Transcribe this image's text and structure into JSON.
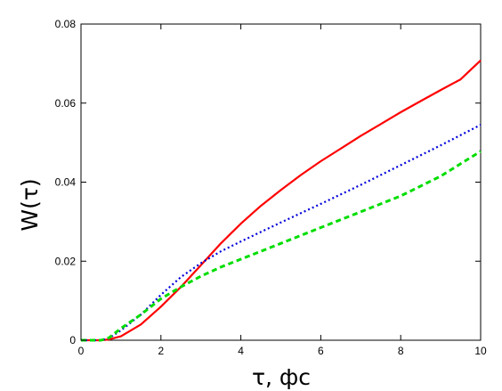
{
  "chart_data": {
    "type": "line",
    "title": "",
    "xlabel": "τ, фс",
    "ylabel": "W(τ)",
    "xlim": [
      0,
      10
    ],
    "ylim": [
      0,
      0.08
    ],
    "x_ticks": [
      0,
      2,
      4,
      6,
      8,
      10
    ],
    "y_ticks": [
      0,
      0.02,
      0.04,
      0.06,
      0.08
    ],
    "x_tick_labels": [
      "0",
      "2",
      "4",
      "6",
      "8",
      "10"
    ],
    "y_tick_labels": [
      "0",
      "0.02",
      "0.04",
      "0.06",
      "0.08"
    ],
    "grid": false,
    "legend": "none",
    "series": [
      {
        "color": "#ff0000",
        "style": "solid",
        "x": [
          0,
          0.5,
          0.7,
          1.0,
          1.5,
          2.0,
          2.5,
          3.0,
          3.5,
          4.0,
          4.5,
          5.0,
          5.5,
          6.0,
          6.5,
          7.0,
          7.5,
          8.0,
          8.5,
          9.0,
          9.5,
          10.0
        ],
        "y": [
          0,
          0,
          0.0002,
          0.001,
          0.004,
          0.0085,
          0.0135,
          0.019,
          0.0245,
          0.0295,
          0.034,
          0.038,
          0.0418,
          0.0453,
          0.0485,
          0.0517,
          0.0547,
          0.0577,
          0.0605,
          0.0633,
          0.066,
          0.0708
        ]
      },
      {
        "color": "#0000dd",
        "style": "dotted",
        "x": [
          0,
          0.5,
          0.7,
          1.0,
          1.5,
          2.0,
          2.5,
          3.0,
          3.5,
          4.0,
          5.0,
          6.0,
          7.0,
          8.0,
          9.0,
          10.0
        ],
        "y": [
          0,
          0,
          0.0005,
          0.0025,
          0.0065,
          0.0115,
          0.016,
          0.0195,
          0.0225,
          0.025,
          0.0298,
          0.0345,
          0.0393,
          0.0443,
          0.0493,
          0.0545
        ]
      },
      {
        "color": "#00dd00",
        "style": "dashed",
        "x": [
          0,
          0.5,
          0.7,
          1.0,
          1.5,
          2.0,
          2.5,
          3.0,
          3.5,
          4.0,
          5.0,
          6.0,
          7.0,
          8.0,
          9.0,
          10.0
        ],
        "y": [
          0,
          0,
          0.0006,
          0.003,
          0.0065,
          0.0105,
          0.0135,
          0.0162,
          0.0185,
          0.0205,
          0.0245,
          0.0285,
          0.0325,
          0.0365,
          0.0415,
          0.0478
        ]
      }
    ]
  }
}
